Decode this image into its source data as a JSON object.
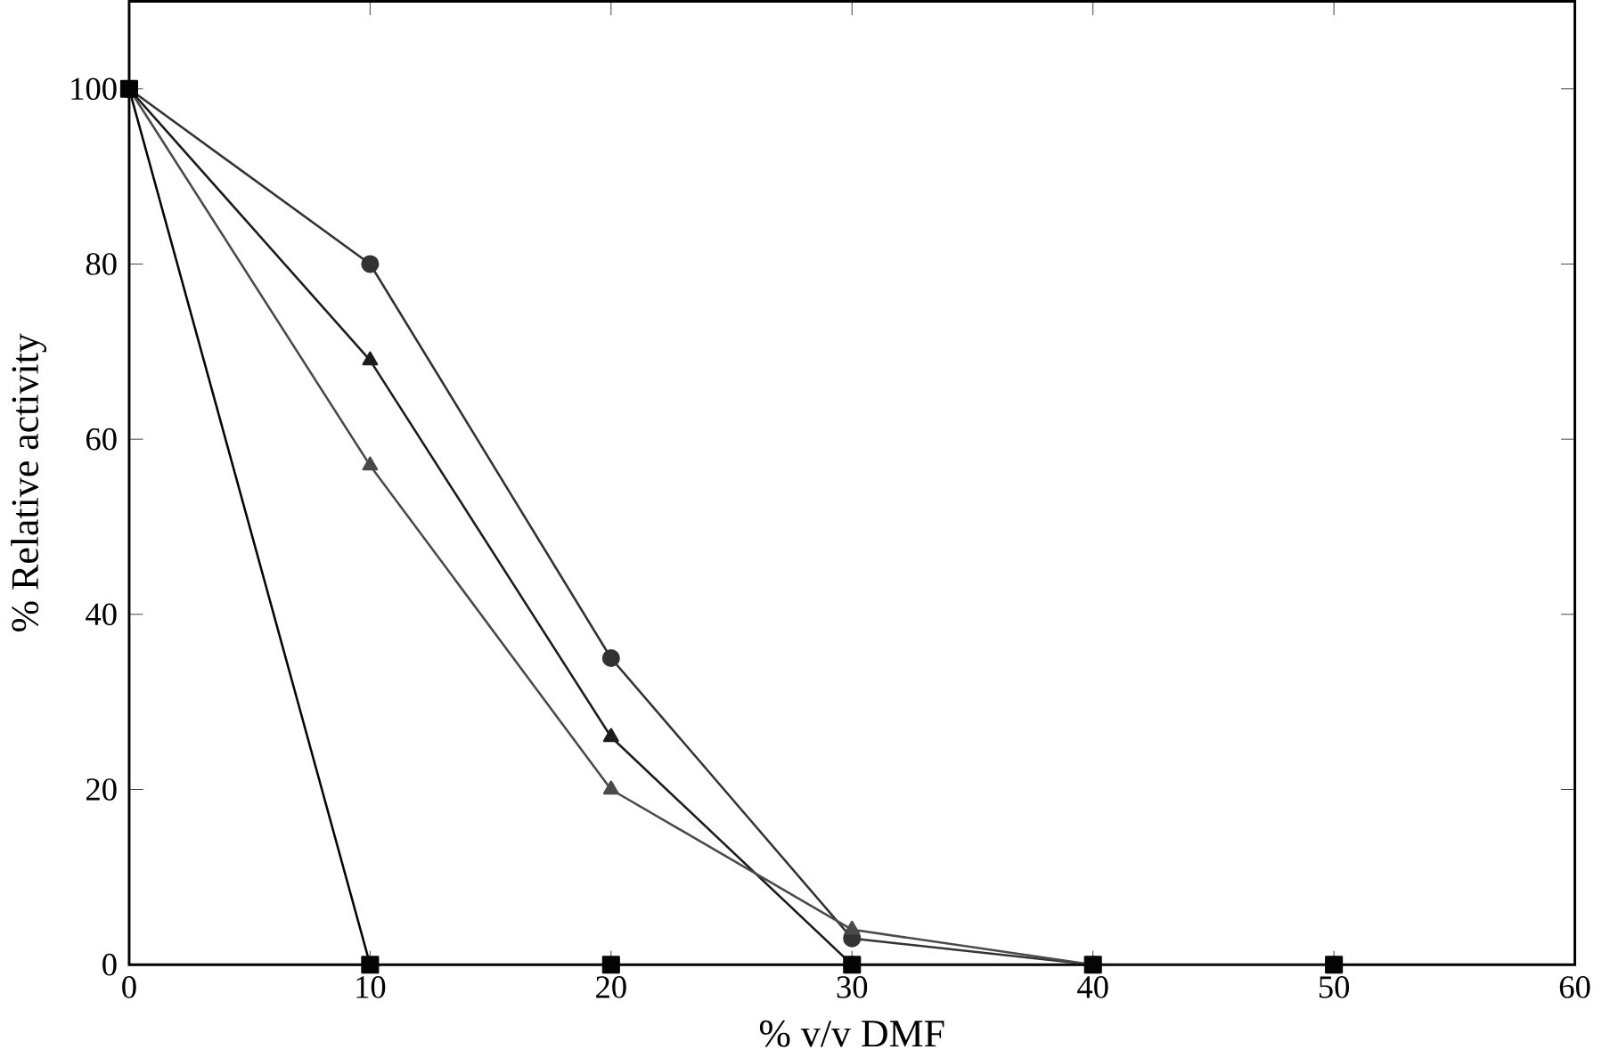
{
  "chart_data": {
    "type": "line",
    "xlabel": "% v/v DMF",
    "ylabel": "% Relative activity",
    "x": [
      0,
      10,
      20,
      30,
      40,
      50
    ],
    "series": [
      {
        "color": "#333333",
        "marker": "circle",
        "values": [
          100,
          80,
          35,
          3,
          0,
          0
        ]
      },
      {
        "color": "#1c1c1c",
        "marker": "triangle",
        "values": [
          100,
          69,
          26,
          0,
          0,
          0
        ]
      },
      {
        "color": "#4a4a4a",
        "marker": "triangle",
        "values": [
          100,
          57,
          20,
          4,
          0,
          0
        ]
      },
      {
        "color": "#050505",
        "marker": "square",
        "values": [
          100,
          0,
          0,
          0,
          0,
          0
        ]
      }
    ],
    "xlim": [
      0,
      60
    ],
    "xticks": [
      0,
      10,
      20,
      30,
      40,
      50,
      60
    ],
    "ylim": [
      0,
      110
    ],
    "yticks": [
      0,
      20,
      40,
      60,
      80,
      100
    ],
    "grid": false,
    "line_style": "solid"
  }
}
